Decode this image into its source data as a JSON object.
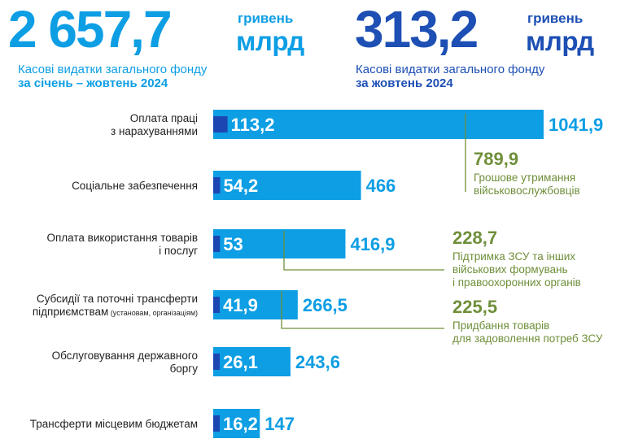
{
  "colors": {
    "light_blue": "#0d9ee4",
    "dark_blue": "#1c47b3",
    "navy": "#1d4fb4",
    "olive": "#6f8f3a",
    "text_dark": "#222222"
  },
  "header": {
    "left": {
      "value": "2 657,7",
      "unit_top": "гривень",
      "unit_bottom": "млрд",
      "caption": "Касові видатки загального фонду",
      "period": "за січень – жовтень 2024"
    },
    "right": {
      "value": "313,2",
      "unit_top": "гривень",
      "unit_bottom": "млрд",
      "caption": "Касові видатки загального фонду",
      "period": "за жовтень 2024"
    }
  },
  "chart_data": {
    "type": "bar",
    "orientation": "horizontal",
    "title": "",
    "xlabel": "",
    "ylabel": "",
    "xlim": [
      0,
      1041.9
    ],
    "grid": false,
    "categories": [
      "Оплата праці з нарахуваннями",
      "Соціальне забезпечення",
      "Оплата використання товарів і послуг",
      "Субсидії та поточні трансферти підприємствам (установам, організаціям)",
      "Обслуговування державного боргу",
      "Трансферти місцевим бюджетам"
    ],
    "category_lines": [
      {
        "main": [
          "Оплата праці",
          "з нарахуваннями"
        ],
        "small": ""
      },
      {
        "main": [
          "Соціальне забезпечення"
        ],
        "small": ""
      },
      {
        "main": [
          "Оплата використання товарів",
          "і послуг"
        ],
        "small": ""
      },
      {
        "main": [
          "Субсидії та поточні трансферти",
          "підприємствам"
        ],
        "small": "(установам, організаціям)"
      },
      {
        "main": [
          "Обслуговування державного",
          "боргу"
        ],
        "small": ""
      },
      {
        "main": [
          "Трансферти місцевим бюджетам"
        ],
        "small": ""
      }
    ],
    "series": [
      {
        "values": [
          1041.9,
          466,
          416.9,
          266.5,
          243.6,
          147
        ],
        "labels": [
          "1041,9",
          "466",
          "416,9",
          "266,5",
          "243,6",
          "147"
        ]
      },
      {
        "values": [
          113.2,
          54.2,
          53,
          41.9,
          26.1,
          16.2
        ],
        "labels": [
          "113,2",
          "54,2",
          "53",
          "41,9",
          "26,1",
          "16,2"
        ]
      }
    ],
    "annotations": [
      {
        "category_index": 0,
        "value": "789,9",
        "text": [
          "Грошове утримання",
          "військовослужбовців"
        ]
      },
      {
        "category_index": 2,
        "value": "228,7",
        "text": [
          "Підтримка ЗСУ та інших",
          "військових формувань",
          "і правоохоронних органів"
        ]
      },
      {
        "category_index": 3,
        "value": "225,5",
        "text": [
          "Придбання товарів",
          "для задоволення потреб ЗСУ"
        ]
      }
    ]
  }
}
